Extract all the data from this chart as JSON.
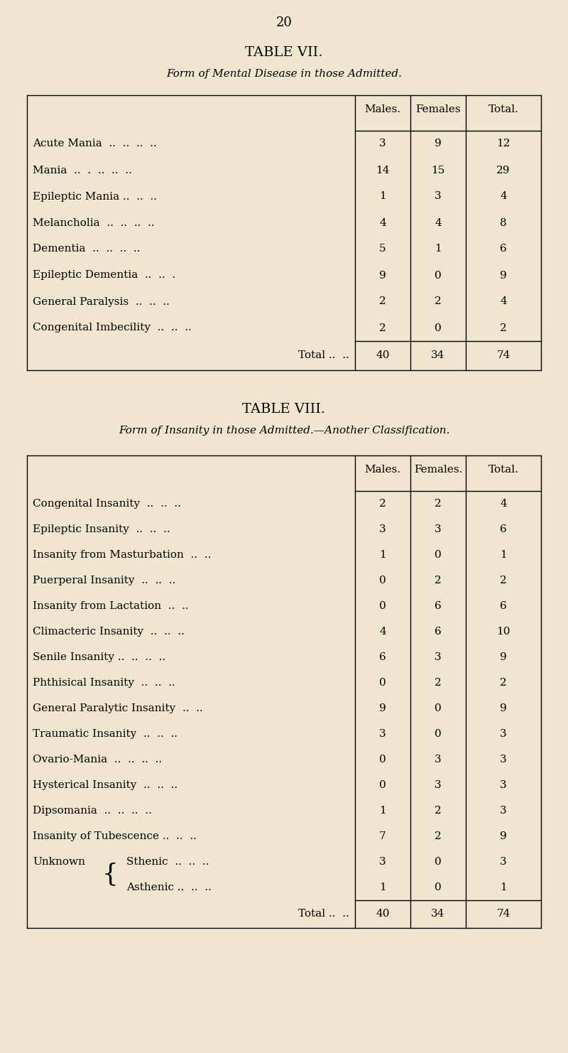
{
  "bg_color": "#f0e6d0",
  "page_number": "20",
  "table7": {
    "title": "TABLE VII.",
    "subtitle": "Form of Mental Disease in those Admitted.",
    "col_headers": [
      "Males.",
      "Females",
      "Total."
    ],
    "rows": [
      [
        "Acute Mania  ..  ..  ..  ..",
        "3",
        "9",
        "12"
      ],
      [
        "Mania  ..  .  ..  ..  ..",
        "14",
        "15",
        "29"
      ],
      [
        "Epileptic Mania ..  ..  ..",
        "1",
        "3",
        "4"
      ],
      [
        "Melancholia  ..  ..  ..  ..",
        "4",
        "4",
        "8"
      ],
      [
        "Dementia  ..  ..  ..  ..",
        "5",
        "1",
        "6"
      ],
      [
        "Epileptic Dementia  ..  ..  .",
        "9",
        "0",
        "9"
      ],
      [
        "General Paralysis  ..  ..  ..",
        "2",
        "2",
        "4"
      ],
      [
        "Congenital Imbecility  ..  ..  ..",
        "2",
        "0",
        "2"
      ]
    ],
    "total_label": "Total ..  ..",
    "total_vals": [
      "40",
      "34",
      "74"
    ]
  },
  "table8": {
    "title": "TABLE VIII.",
    "subtitle": "Form of Insanity in those Admitted.—Another Classification.",
    "col_headers": [
      "Males.",
      "Females.",
      "Total."
    ],
    "rows": [
      [
        "Congenital Insanity  ..  ..  ..",
        "2",
        "2",
        "4"
      ],
      [
        "Epileptic Insanity  ..  ..  ..",
        "3",
        "3",
        "6"
      ],
      [
        "Insanity from Masturbation  ..  ..",
        "1",
        "0",
        "1"
      ],
      [
        "Puerperal Insanity  ..  ..  ..",
        "0",
        "2",
        "2"
      ],
      [
        "Insanity from Lactation  ..  ..",
        "0",
        "6",
        "6"
      ],
      [
        "Climacteric Insanity  ..  ..  ..",
        "4",
        "6",
        "10"
      ],
      [
        "Senile Insanity ..  ..  ..  ..",
        "6",
        "3",
        "9"
      ],
      [
        "Phthisical Insanity  ..  ..  ..",
        "0",
        "2",
        "2"
      ],
      [
        "General Paralytic Insanity  ..  ..",
        "9",
        "0",
        "9"
      ],
      [
        "Traumatic Insanity  ..  ..  ..",
        "3",
        "0",
        "3"
      ],
      [
        "Ovario-Mania  ..  ..  ..  ..",
        "0",
        "3",
        "3"
      ],
      [
        "Hysterical Insanity  ..  ..  ..",
        "0",
        "3",
        "3"
      ],
      [
        "Dipsomania  ..  ..  ..  ..",
        "1",
        "2",
        "3"
      ],
      [
        "Insanity of Tubescence ..  ..  ..",
        "7",
        "2",
        "9"
      ],
      [
        "UNKNOWN_STHENIC",
        "3",
        "0",
        "3"
      ],
      [
        "UNKNOWN_ASTHENIC",
        "1",
        "0",
        "1"
      ]
    ],
    "total_label": "Total ..  ..",
    "total_vals": [
      "40",
      "34",
      "74"
    ]
  }
}
